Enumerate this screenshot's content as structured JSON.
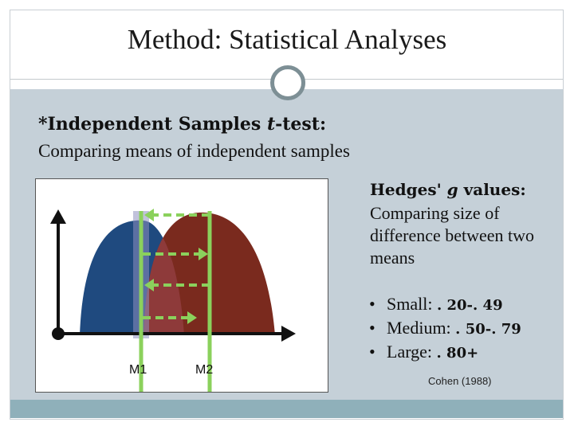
{
  "slide": {
    "title": "Method: Statistical Analyses",
    "section": {
      "heading_prefix": "*Independent Samples ",
      "heading_italic": "t",
      "heading_suffix": "-test:",
      "subtitle": "Comparing means of independent samples"
    },
    "effect_size": {
      "heading_prefix": "Hedges' ",
      "heading_italic": "g",
      "heading_suffix": " values:",
      "description": "Comparing size of difference between two means",
      "bullets": [
        {
          "label": "Small: ",
          "value": ". 20-. 49"
        },
        {
          "label": "Medium: ",
          "value": ". 50-. 79"
        },
        {
          "label": "Large: ",
          "value": ". 80+"
        }
      ],
      "citation": "Cohen (1988)"
    },
    "diagram": {
      "m1_label": "M1",
      "m2_label": "M2",
      "colors": {
        "curve1": "#1f4a7f",
        "curve2": "#7a2a1e",
        "overlap": "#8e3a3a",
        "guide": "#8bd15c"
      }
    }
  },
  "theme": {
    "content_bg": "#c5d0d8",
    "footer_bg": "#8fb0ba",
    "ring": "#7d8f95"
  }
}
